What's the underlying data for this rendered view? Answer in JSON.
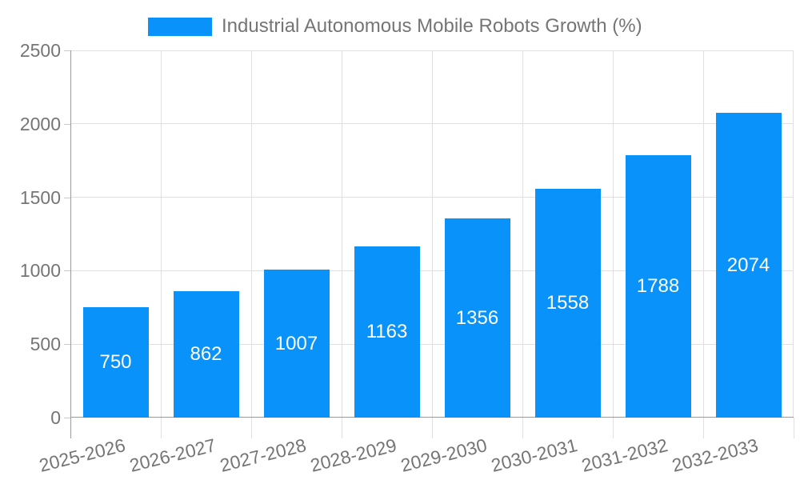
{
  "chart_data": {
    "type": "bar",
    "title": "Industrial Autonomous Mobile Robots Growth (%)",
    "legend_position": "top",
    "categories": [
      "2025-2026",
      "2026-2027",
      "2027-2028",
      "2028-2029",
      "2029-2030",
      "2030-2031",
      "2031-2032",
      "2032-2033"
    ],
    "values": [
      750,
      862,
      1007,
      1163,
      1356,
      1558,
      1788,
      2074
    ],
    "value_labels_shown": true,
    "xlabel": "",
    "ylabel": "",
    "ylim": [
      0,
      2500
    ],
    "yticks": [
      0,
      500,
      1000,
      1500,
      2000,
      2500
    ],
    "grid": true,
    "x_label_rotation_deg": -14,
    "colors": {
      "bar": "#0892fa",
      "value_label": "#ffffff",
      "axis_text": "#757575",
      "grid_line": "#e0e0e0",
      "axis_line": "#9a9a9a",
      "tick_mark": "#c9c9c9",
      "background": "#ffffff"
    }
  }
}
